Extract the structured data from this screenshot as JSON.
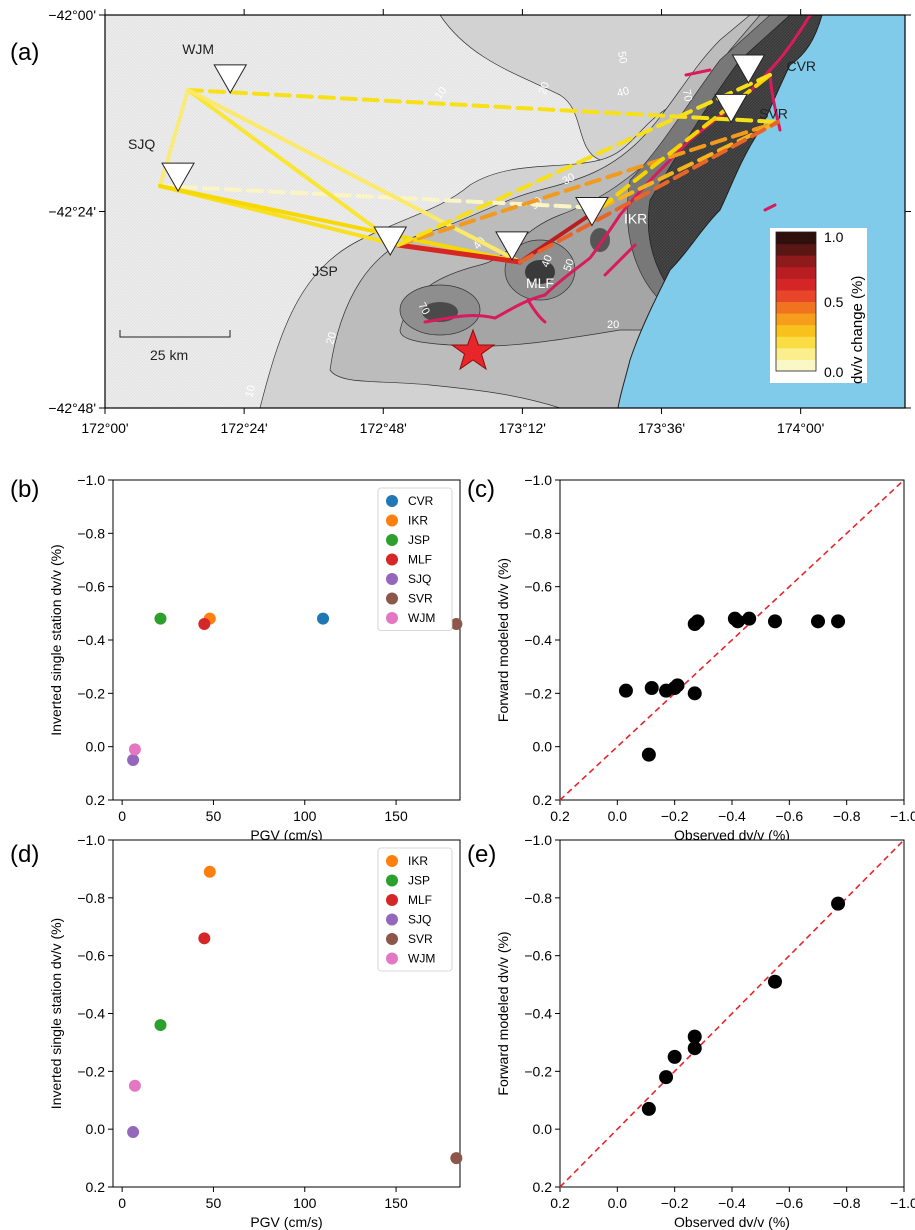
{
  "panel_letters": [
    "(a)",
    "(b)",
    "(c)",
    "(d)",
    "(e)"
  ],
  "map": {
    "lat_ticks": [
      "−42°00'",
      "−42°24'",
      "−42°48'"
    ],
    "lon_ticks": [
      "172°00'",
      "172°24'",
      "172°48'",
      "173°12'",
      "173°36'",
      "174°00'"
    ],
    "scale_label": "25 km",
    "stations": [
      {
        "code": "WJM",
        "lon": 172.36,
        "lat": -42.13
      },
      {
        "code": "SJQ",
        "lon": 172.21,
        "lat": -42.33
      },
      {
        "code": "JSP",
        "lon": 172.82,
        "lat": -42.46
      },
      {
        "code": "MLF",
        "lon": 173.17,
        "lat": -42.47
      },
      {
        "code": "IKR",
        "lon": 173.4,
        "lat": -42.4
      },
      {
        "code": "CVR",
        "lon": 173.85,
        "lat": -42.11
      },
      {
        "code": "SVR",
        "lon": 173.8,
        "lat": -42.19
      }
    ],
    "contour_labels": [
      "10",
      "20",
      "30",
      "40",
      "50",
      "70",
      "20",
      "20",
      "10",
      "70",
      "40",
      "50",
      "30",
      "40"
    ],
    "colorbar": {
      "title": "dv/v change (%)",
      "ticks": [
        "1.0",
        "0.5",
        "0.0"
      ],
      "colors": [
        "#fbf8c8",
        "#fbee8c",
        "#fadd44",
        "#f9c11c",
        "#f69d1c",
        "#f07320",
        "#e8452a",
        "#d42527",
        "#b81d22",
        "#8e1a1c",
        "#5a1613",
        "#2e0f0b"
      ]
    },
    "colors": {
      "sea": "#7fcbe9",
      "fault": "#d81b5d",
      "epicenter": "#e8252a"
    }
  },
  "legend_b": [
    "CVR",
    "IKR",
    "JSP",
    "MLF",
    "SJQ",
    "SVR",
    "WJM"
  ],
  "legend_d": [
    "IKR",
    "JSP",
    "MLF",
    "SJQ",
    "SVR",
    "WJM"
  ],
  "station_colors": {
    "CVR": "#1f77b4",
    "IKR": "#ff7f0e",
    "JSP": "#2ca02c",
    "MLF": "#d62728",
    "SJQ": "#9467bd",
    "SVR": "#8c564b",
    "WJM": "#e377c2"
  },
  "chart_data": [
    {
      "panel": "(b)",
      "type": "scatter",
      "xlabel": "PGV (cm/s)",
      "ylabel": "Inverted single station dv/v (%)",
      "xlim": [
        -5,
        185
      ],
      "ylim": [
        0.2,
        -1.0
      ],
      "xticks": [
        "0",
        "50",
        "100",
        "150"
      ],
      "yticks": [
        "−1.0",
        "−0.8",
        "−0.6",
        "−0.4",
        "−0.2",
        "0.0",
        "0.2"
      ],
      "points": [
        {
          "station": "CVR",
          "x": 110,
          "y": -0.48
        },
        {
          "station": "IKR",
          "x": 48,
          "y": -0.48
        },
        {
          "station": "JSP",
          "x": 21,
          "y": -0.48
        },
        {
          "station": "MLF",
          "x": 45,
          "y": -0.46
        },
        {
          "station": "SJQ",
          "x": 6,
          "y": 0.05
        },
        {
          "station": "SVR",
          "x": 183,
          "y": -0.46
        },
        {
          "station": "WJM",
          "x": 7,
          "y": 0.01
        }
      ]
    },
    {
      "panel": "(c)",
      "type": "scatter",
      "xlabel": "Observed dv/v (%)",
      "ylabel": "Forward modeled dv/v (%)",
      "xlim": [
        0.2,
        -1.0
      ],
      "ylim": [
        0.2,
        -1.0
      ],
      "xticks": [
        "0.2",
        "0.0",
        "−0.2",
        "−0.4",
        "−0.6",
        "−0.8",
        "−1.0"
      ],
      "yticks": [
        "−1.0",
        "−0.8",
        "−0.6",
        "−0.4",
        "−0.2",
        "0.0",
        "0.2"
      ],
      "reference_line": "1:1",
      "points": [
        {
          "x": -0.03,
          "y": -0.21
        },
        {
          "x": -0.11,
          "y": 0.03
        },
        {
          "x": -0.12,
          "y": -0.22
        },
        {
          "x": -0.17,
          "y": -0.21
        },
        {
          "x": -0.2,
          "y": -0.22
        },
        {
          "x": -0.21,
          "y": -0.23
        },
        {
          "x": -0.27,
          "y": -0.2
        },
        {
          "x": -0.27,
          "y": -0.46
        },
        {
          "x": -0.28,
          "y": -0.47
        },
        {
          "x": -0.41,
          "y": -0.48
        },
        {
          "x": -0.42,
          "y": -0.47
        },
        {
          "x": -0.46,
          "y": -0.48
        },
        {
          "x": -0.55,
          "y": -0.47
        },
        {
          "x": -0.7,
          "y": -0.47
        },
        {
          "x": -0.77,
          "y": -0.47
        }
      ]
    },
    {
      "panel": "(d)",
      "type": "scatter",
      "xlabel": "PGV (cm/s)",
      "ylabel": "Inverted single station dv/v (%)",
      "xlim": [
        -5,
        185
      ],
      "ylim": [
        0.2,
        -1.0
      ],
      "xticks": [
        "0",
        "50",
        "100",
        "150"
      ],
      "yticks": [
        "−1.0",
        "−0.8",
        "−0.6",
        "−0.4",
        "−0.2",
        "0.0",
        "0.2"
      ],
      "points": [
        {
          "station": "IKR",
          "x": 48,
          "y": -0.89
        },
        {
          "station": "JSP",
          "x": 21,
          "y": -0.36
        },
        {
          "station": "MLF",
          "x": 45,
          "y": -0.66
        },
        {
          "station": "SJQ",
          "x": 6,
          "y": 0.01
        },
        {
          "station": "SVR",
          "x": 183,
          "y": 0.1
        },
        {
          "station": "WJM",
          "x": 7,
          "y": -0.15
        }
      ]
    },
    {
      "panel": "(e)",
      "type": "scatter",
      "xlabel": "Observed dv/v (%)",
      "ylabel": "Forward modeled dv/v (%)",
      "xlim": [
        0.2,
        -1.0
      ],
      "ylim": [
        0.2,
        -1.0
      ],
      "xticks": [
        "0.2",
        "0.0",
        "−0.2",
        "−0.4",
        "−0.6",
        "−0.8",
        "−1.0"
      ],
      "yticks": [
        "−1.0",
        "−0.8",
        "−0.6",
        "−0.4",
        "−0.2",
        "0.0",
        "0.2"
      ],
      "reference_line": "1:1",
      "points": [
        {
          "x": -0.11,
          "y": -0.07
        },
        {
          "x": -0.17,
          "y": -0.18
        },
        {
          "x": -0.2,
          "y": -0.25
        },
        {
          "x": -0.27,
          "y": -0.28
        },
        {
          "x": -0.27,
          "y": -0.32
        },
        {
          "x": -0.55,
          "y": -0.51
        },
        {
          "x": -0.77,
          "y": -0.78
        }
      ]
    }
  ]
}
